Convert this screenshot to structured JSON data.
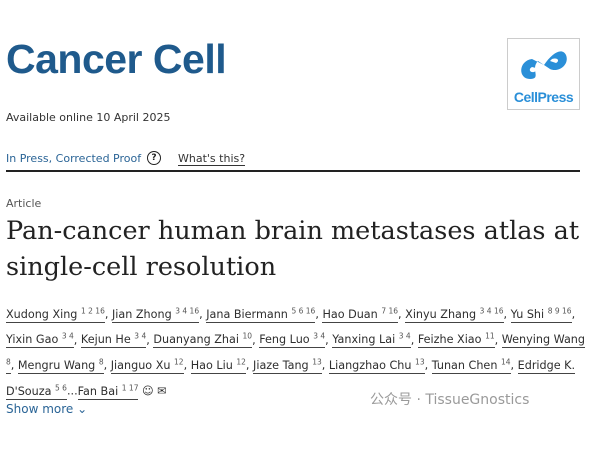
{
  "journal": {
    "name": "Cancer Cell",
    "available": "Available online 10 April 2025",
    "publisher_logo": "CellPress"
  },
  "status": {
    "label": "In Press, Corrected Proof",
    "help_icon": "?",
    "whats_this": "What's this?"
  },
  "article": {
    "type": "Article",
    "title": "Pan-cancer human brain metastases atlas at single-cell resolution"
  },
  "authors": [
    {
      "name": "Xudong Xing",
      "sup": "1 2 16"
    },
    {
      "name": "Jian Zhong",
      "sup": "3 4 16"
    },
    {
      "name": "Jana Biermann",
      "sup": "5 6 16"
    },
    {
      "name": "Hao Duan",
      "sup": "7 16"
    },
    {
      "name": "Xinyu Zhang",
      "sup": "3 4 16"
    },
    {
      "name": "Yu Shi",
      "sup": "8 9 16"
    },
    {
      "name": "Yixin Gao",
      "sup": "3 4"
    },
    {
      "name": "Kejun He",
      "sup": "3 4"
    },
    {
      "name": "Duanyang Zhai",
      "sup": "10"
    },
    {
      "name": "Feng Luo",
      "sup": "3 4"
    },
    {
      "name": "Yanxing Lai",
      "sup": "3 4"
    },
    {
      "name": "Feizhe Xiao",
      "sup": "11"
    },
    {
      "name": "Wenying Wang",
      "sup": "8"
    },
    {
      "name": "Mengru Wang",
      "sup": "8"
    },
    {
      "name": "Jianguo Xu",
      "sup": "12"
    },
    {
      "name": "Hao Liu",
      "sup": "12"
    },
    {
      "name": "Jiaze Tang",
      "sup": "13"
    },
    {
      "name": "Liangzhao Chu",
      "sup": "13"
    },
    {
      "name": "Tunan Chen",
      "sup": "14"
    },
    {
      "name": "Edridge K. D'Souza",
      "sup": "5 6"
    },
    {
      "name": "Fan Bai",
      "sup": "1 17"
    }
  ],
  "authors_icons": {
    "person": "person-icon",
    "mail": "envelope-icon"
  },
  "show_more": "Show more",
  "watermark": "公众号 · TissueGnostics"
}
